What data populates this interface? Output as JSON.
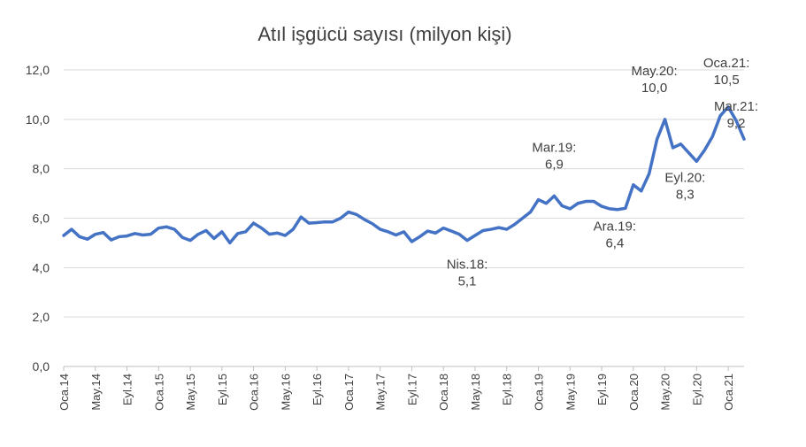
{
  "chart_data": {
    "type": "line",
    "title": "Atıl işgücü sayısı (milyon kişi)",
    "xlabel": "",
    "ylabel": "",
    "ylim": [
      0,
      12
    ],
    "yticks": [
      "0,0",
      "2,0",
      "4,0",
      "6,0",
      "8,0",
      "10,0",
      "12,0"
    ],
    "grid": true,
    "legend": "none",
    "color": "#4472c4",
    "x_tick_labels": [
      {
        "index": 0,
        "label": "Oca.14"
      },
      {
        "index": 4,
        "label": "May.14"
      },
      {
        "index": 8,
        "label": "Eyl.14"
      },
      {
        "index": 12,
        "label": "Oca.15"
      },
      {
        "index": 16,
        "label": "May.15"
      },
      {
        "index": 20,
        "label": "Eyl.15"
      },
      {
        "index": 24,
        "label": "Oca.16"
      },
      {
        "index": 28,
        "label": "May.16"
      },
      {
        "index": 32,
        "label": "Eyl.16"
      },
      {
        "index": 36,
        "label": "Oca.17"
      },
      {
        "index": 40,
        "label": "May.17"
      },
      {
        "index": 44,
        "label": "Eyl.17"
      },
      {
        "index": 48,
        "label": "Oca.18"
      },
      {
        "index": 52,
        "label": "May.18"
      },
      {
        "index": 56,
        "label": "Eyl.18"
      },
      {
        "index": 60,
        "label": "Oca.19"
      },
      {
        "index": 64,
        "label": "May.19"
      },
      {
        "index": 68,
        "label": "Eyl.19"
      },
      {
        "index": 72,
        "label": "Oca.20"
      },
      {
        "index": 76,
        "label": "May.20"
      },
      {
        "index": 80,
        "label": "Eyl.20"
      },
      {
        "index": 84,
        "label": "Oca.21"
      }
    ],
    "series": [
      {
        "values": [
          5.3,
          5.55,
          5.25,
          5.15,
          5.35,
          5.42,
          5.12,
          5.25,
          5.28,
          5.38,
          5.32,
          5.35,
          5.6,
          5.65,
          5.55,
          5.22,
          5.1,
          5.35,
          5.5,
          5.18,
          5.45,
          5.0,
          5.38,
          5.45,
          5.8,
          5.6,
          5.35,
          5.4,
          5.3,
          5.55,
          6.05,
          5.8,
          5.82,
          5.85,
          5.85,
          6.0,
          6.25,
          6.15,
          5.95,
          5.78,
          5.55,
          5.45,
          5.32,
          5.45,
          5.05,
          5.25,
          5.48,
          5.4,
          5.6,
          5.48,
          5.35,
          5.1,
          5.3,
          5.5,
          5.55,
          5.62,
          5.55,
          5.75,
          6.0,
          6.25,
          6.75,
          6.6,
          6.9,
          6.5,
          6.38,
          6.6,
          6.68,
          6.68,
          6.48,
          6.38,
          6.35,
          6.4,
          7.35,
          7.1,
          7.8,
          9.2,
          10.0,
          8.85,
          9.0,
          8.65,
          8.3,
          8.75,
          9.3,
          10.15,
          10.5,
          9.95,
          9.2
        ]
      }
    ],
    "annotations": [
      {
        "index": 51,
        "value": 5.1,
        "lines": [
          "Nis.18:",
          "5,1"
        ]
      },
      {
        "index": 62,
        "value": 6.9,
        "lines": [
          "Mar.19:",
          "6,9"
        ]
      },
      {
        "index": 71,
        "value": 6.4,
        "lines": [
          "Ara.19:",
          "6,4"
        ]
      },
      {
        "index": 76,
        "value": 10.0,
        "lines": [
          "May.20:",
          "10,0"
        ]
      },
      {
        "index": 80,
        "value": 8.3,
        "lines": [
          "Eyl.20:",
          "8,3"
        ]
      },
      {
        "index": 84,
        "value": 10.5,
        "lines": [
          "Oca.21:",
          "10,5"
        ]
      },
      {
        "index": 86,
        "value": 9.2,
        "lines": [
          "Mar.21:",
          "9,2"
        ]
      }
    ]
  }
}
